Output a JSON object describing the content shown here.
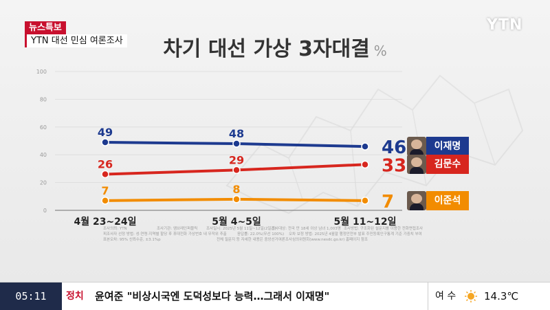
{
  "header": {
    "badge": "뉴스특보",
    "subtitle": "YTN 대선 민심 여론조사",
    "logo": "YTN"
  },
  "title": "차기 대선 가상 3자대결",
  "unit": "%",
  "chart_data": {
    "type": "line",
    "x": [
      "4월 23~24일",
      "5월 4~5일",
      "5월 11~12일"
    ],
    "ylim": [
      0,
      100
    ],
    "yticks": [
      "0",
      "20",
      "40",
      "60",
      "80",
      "100"
    ],
    "series": [
      {
        "name": "이재명",
        "values": [
          49,
          48,
          46
        ],
        "color": "#1d3a8f"
      },
      {
        "name": "김문수",
        "values": [
          26,
          29,
          33
        ],
        "color": "#d7261e"
      },
      {
        "name": "이준석",
        "values": [
          7,
          8,
          7
        ],
        "color": "#f28c00"
      }
    ]
  },
  "footnotes": [
    "조사의뢰: YTN",
    "조사기관: 엠브레인퍼블릭",
    "조사일시: 2025년 5월 11일~12일(2일간)",
    "조사대상: 전국 만 18세 이상 남녀 1,003명",
    "조사방법: 구조화된 설문지를 이용한 전화면접조사",
    "피조사자 선정 방법: 성·연령·지역별 할당 후 휴대전화 가상번호 내 무작위 추출",
    "응답률: 22.0%(무선 100%)",
    "오차 보정 방법: 2025년 4월말 행정안전부 발표 주민등록인구통계 기준 가중치 부여",
    "표본오차: 95% 신뢰수준, ±3.1%p",
    "전체 질문지 등 자세한 내용은 중앙선거여론조사심의위원회(www.nesdc.go.kr) 홈페이지 참조"
  ],
  "ticker": {
    "time": "05:11",
    "category": "정치",
    "headline": "윤여준 \"비상시국엔 도덕성보다 능력…그래서 이재명\"",
    "city": "여 수",
    "weather_icon": "sun-icon",
    "temp": "14.3℃"
  }
}
